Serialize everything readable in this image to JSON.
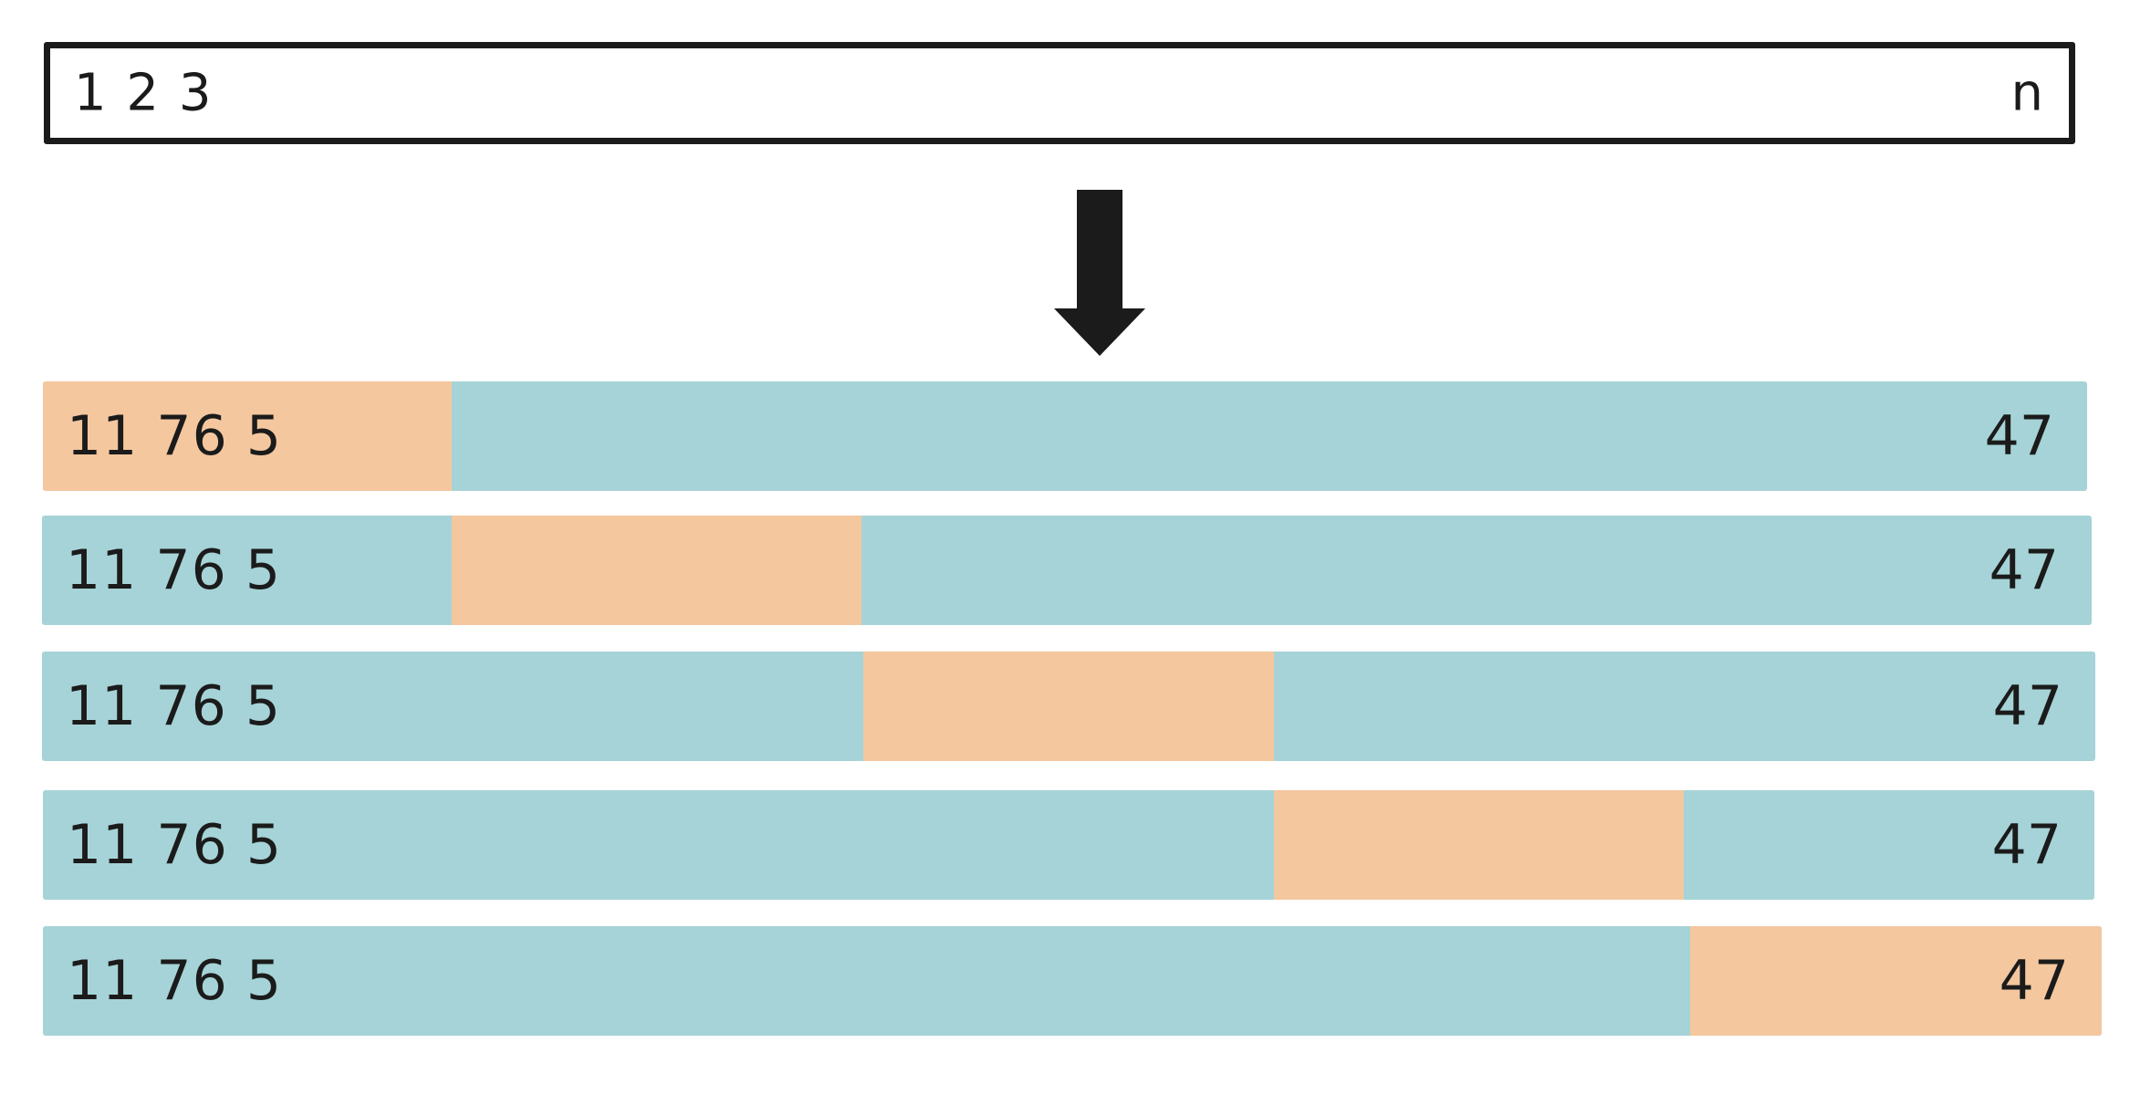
{
  "input_sequence": {
    "start_label": "1 2 3",
    "end_label": "n"
  },
  "arrow": {
    "icon": "down-arrow-icon",
    "color": "#1b1b1b"
  },
  "colors": {
    "row_background": "#a6d3d7",
    "highlight": "#f4c79f",
    "text": "#1b1b1b"
  },
  "folds": [
    {
      "start_label": "11 76 5",
      "end_label": "47",
      "highlight_segment": 1,
      "segment_count": 5
    },
    {
      "start_label": "11 76 5",
      "end_label": "47",
      "highlight_segment": 2,
      "segment_count": 5
    },
    {
      "start_label": "11 76 5",
      "end_label": "47",
      "highlight_segment": 3,
      "segment_count": 5
    },
    {
      "start_label": "11 76 5",
      "end_label": "47",
      "highlight_segment": 4,
      "segment_count": 5
    },
    {
      "start_label": "11 76 5",
      "end_label": "47",
      "highlight_segment": 5,
      "segment_count": 5
    }
  ]
}
